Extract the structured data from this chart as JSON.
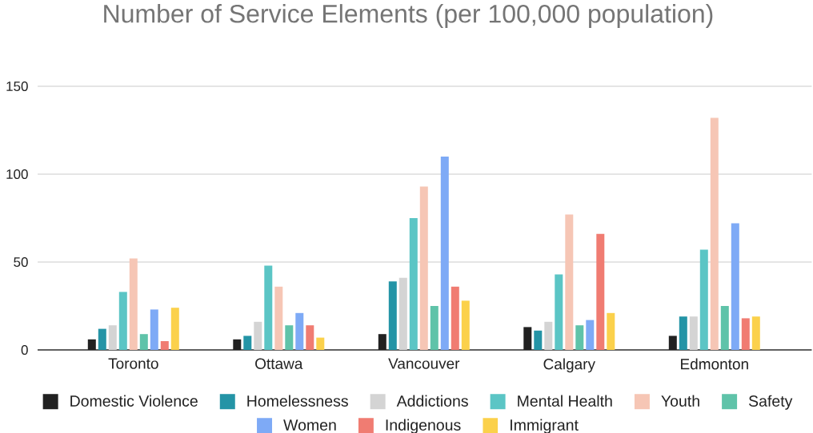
{
  "chart_data": {
    "type": "bar",
    "title": "Number of Service Elements (per 100,000 population)",
    "categories": [
      "Toronto",
      "Ottawa",
      "Vancouver",
      "Calgary",
      "Edmonton"
    ],
    "series": [
      {
        "name": "Domestic Violence",
        "color": "#212121",
        "values": [
          6,
          6,
          9,
          13,
          8
        ]
      },
      {
        "name": "Homelessness",
        "color": "#2494a6",
        "values": [
          12,
          8,
          39,
          11,
          19
        ]
      },
      {
        "name": "Addictions",
        "color": "#d4d4d4",
        "values": [
          14,
          16,
          41,
          16,
          19
        ]
      },
      {
        "name": "Mental Health",
        "color": "#5bc5c5",
        "values": [
          33,
          48,
          75,
          43,
          57
        ]
      },
      {
        "name": "Youth",
        "color": "#f6c6b5",
        "values": [
          52,
          36,
          93,
          77,
          132
        ]
      },
      {
        "name": "Safety",
        "color": "#5fc3a9",
        "values": [
          9,
          14,
          25,
          14,
          25
        ]
      },
      {
        "name": "Women",
        "color": "#7eaaf6",
        "values": [
          23,
          21,
          110,
          17,
          72
        ]
      },
      {
        "name": "Indigenous",
        "color": "#f07c72",
        "values": [
          5,
          14,
          36,
          66,
          18
        ]
      },
      {
        "name": "Immigrant",
        "color": "#fbd14b",
        "values": [
          24,
          7,
          28,
          21,
          19
        ]
      }
    ],
    "ylim": [
      0,
      150
    ],
    "yticks": [
      0,
      50,
      100,
      150
    ],
    "grid": "y",
    "legend": "bottom"
  }
}
